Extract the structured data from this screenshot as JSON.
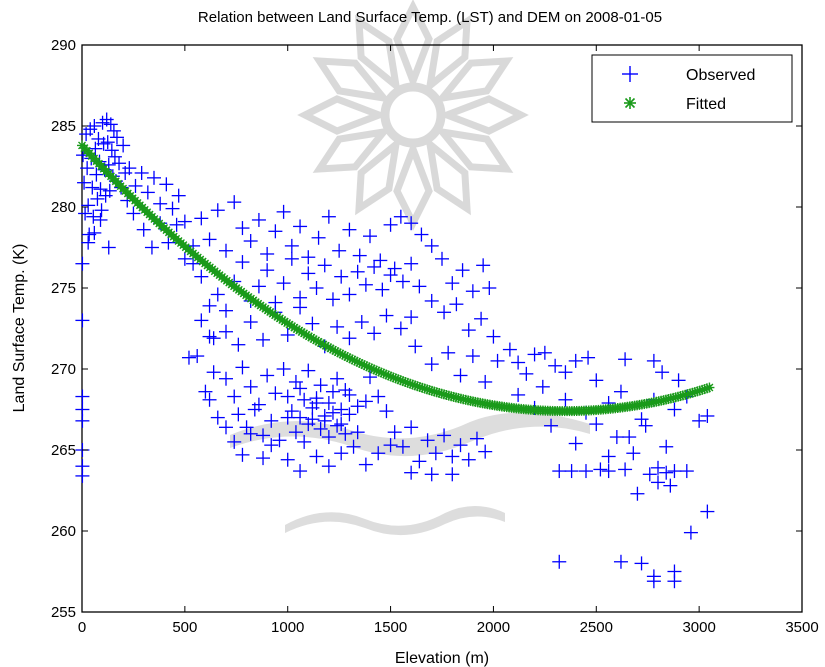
{
  "chart_data": {
    "type": "scatter",
    "title": "Relation between Land Surface Temp. (LST) and DEM on 2008-01-05",
    "xlabel": "Elevation (m)",
    "ylabel": "Land Surface Temp. (K)",
    "xlim": [
      0,
      3500
    ],
    "ylim": [
      255,
      290
    ],
    "xticks": [
      0,
      500,
      1000,
      1500,
      2000,
      2500,
      3000,
      3500
    ],
    "yticks": [
      255,
      260,
      265,
      270,
      275,
      280,
      285,
      290
    ],
    "xtick_labels": [
      "0",
      "500",
      "1000",
      "1500",
      "2000",
      "2500",
      "3000",
      "3500"
    ],
    "ytick_labels": [
      "255",
      "260",
      "265",
      "270",
      "275",
      "280",
      "285",
      "290"
    ],
    "grid": false,
    "legend_position": "top-right",
    "series": [
      {
        "name": "Observed",
        "marker": "+",
        "color": "#0000ff",
        "points": [
          [
            5,
            283.2
          ],
          [
            10,
            281.5
          ],
          [
            15,
            279.6
          ],
          [
            20,
            284.5
          ],
          [
            25,
            282.4
          ],
          [
            30,
            280.1
          ],
          [
            35,
            278.3
          ],
          [
            40,
            284.8
          ],
          [
            45,
            283.0
          ],
          [
            50,
            281.2
          ],
          [
            55,
            279.4
          ],
          [
            60,
            285.0
          ],
          [
            65,
            283.6
          ],
          [
            70,
            282.0
          ],
          [
            75,
            280.5
          ],
          [
            80,
            284.2
          ],
          [
            85,
            282.8
          ],
          [
            90,
            281.1
          ],
          [
            95,
            279.8
          ],
          [
            100,
            285.2
          ],
          [
            105,
            283.9
          ],
          [
            110,
            282.3
          ],
          [
            115,
            280.7
          ],
          [
            120,
            285.4
          ],
          [
            125,
            284.0
          ],
          [
            130,
            282.6
          ],
          [
            135,
            281.0
          ],
          [
            140,
            285.1
          ],
          [
            145,
            283.5
          ],
          [
            150,
            281.9
          ],
          [
            155,
            284.7
          ],
          [
            160,
            283.1
          ],
          [
            165,
            281.6
          ],
          [
            170,
            284.3
          ],
          [
            180,
            282.7
          ],
          [
            190,
            281.2
          ],
          [
            200,
            283.8
          ],
          [
            210,
            282.1
          ],
          [
            220,
            280.4
          ],
          [
            30,
            277.8
          ],
          [
            60,
            278.4
          ],
          [
            90,
            279.2
          ],
          [
            130,
            277.5
          ],
          [
            2,
            276.5
          ],
          [
            2,
            273.0
          ],
          [
            2,
            268.3
          ],
          [
            2,
            267.5
          ],
          [
            2,
            266.8
          ],
          [
            2,
            265.0
          ],
          [
            2,
            264.0
          ],
          [
            2,
            263.4
          ],
          [
            230,
            282.4
          ],
          [
            260,
            281.3
          ],
          [
            290,
            282.1
          ],
          [
            320,
            280.9
          ],
          [
            350,
            281.8
          ],
          [
            380,
            280.2
          ],
          [
            410,
            281.4
          ],
          [
            440,
            279.9
          ],
          [
            470,
            280.7
          ],
          [
            500,
            279.1
          ],
          [
            250,
            279.6
          ],
          [
            300,
            278.6
          ],
          [
            340,
            277.5
          ],
          [
            380,
            279.0
          ],
          [
            420,
            277.8
          ],
          [
            460,
            278.9
          ],
          [
            500,
            276.8
          ],
          [
            540,
            277.6
          ],
          [
            580,
            279.3
          ],
          [
            620,
            278.0
          ],
          [
            660,
            279.8
          ],
          [
            700,
            277.3
          ],
          [
            740,
            280.3
          ],
          [
            780,
            278.7
          ],
          [
            820,
            277.9
          ],
          [
            860,
            279.2
          ],
          [
            900,
            277.1
          ],
          [
            940,
            278.5
          ],
          [
            980,
            279.7
          ],
          [
            1020,
            277.6
          ],
          [
            1060,
            278.8
          ],
          [
            1100,
            276.9
          ],
          [
            1150,
            278.1
          ],
          [
            1200,
            279.4
          ],
          [
            1250,
            277.3
          ],
          [
            1300,
            278.6
          ],
          [
            1350,
            277.0
          ],
          [
            1400,
            278.2
          ],
          [
            1450,
            276.7
          ],
          [
            1500,
            278.9
          ],
          [
            1550,
            279.4
          ],
          [
            1600,
            279.0
          ],
          [
            1650,
            278.3
          ],
          [
            1700,
            277.6
          ],
          [
            1520,
            276.2
          ],
          [
            1560,
            275.4
          ],
          [
            1600,
            276.5
          ],
          [
            1640,
            275.1
          ],
          [
            1500,
            275.8
          ],
          [
            1460,
            274.9
          ],
          [
            1420,
            276.3
          ],
          [
            1380,
            275.2
          ],
          [
            1340,
            276.0
          ],
          [
            1300,
            274.6
          ],
          [
            1260,
            275.7
          ],
          [
            1220,
            274.3
          ],
          [
            1180,
            276.4
          ],
          [
            1140,
            275.0
          ],
          [
            1100,
            275.9
          ],
          [
            1060,
            274.4
          ],
          [
            1020,
            276.8
          ],
          [
            980,
            275.3
          ],
          [
            940,
            274.1
          ],
          [
            900,
            276.1
          ],
          [
            860,
            275.1
          ],
          [
            820,
            274.2
          ],
          [
            780,
            276.6
          ],
          [
            740,
            275.4
          ],
          [
            700,
            273.6
          ],
          [
            660,
            274.6
          ],
          [
            620,
            273.9
          ],
          [
            580,
            275.7
          ],
          [
            540,
            276.5
          ],
          [
            1750,
            276.8
          ],
          [
            1800,
            275.3
          ],
          [
            1850,
            276.1
          ],
          [
            1900,
            274.8
          ],
          [
            1950,
            276.4
          ],
          [
            1980,
            275.0
          ],
          [
            1700,
            274.2
          ],
          [
            1760,
            273.5
          ],
          [
            1820,
            274.0
          ],
          [
            1880,
            272.4
          ],
          [
            1940,
            273.1
          ],
          [
            2000,
            272.0
          ],
          [
            1600,
            273.2
          ],
          [
            1550,
            272.5
          ],
          [
            1480,
            273.3
          ],
          [
            1420,
            272.2
          ],
          [
            1360,
            272.9
          ],
          [
            1300,
            271.9
          ],
          [
            1240,
            272.6
          ],
          [
            1180,
            271.4
          ],
          [
            1120,
            272.8
          ],
          [
            1060,
            273.8
          ],
          [
            1000,
            272.1
          ],
          [
            940,
            273.5
          ],
          [
            880,
            271.8
          ],
          [
            820,
            272.9
          ],
          [
            760,
            271.5
          ],
          [
            700,
            272.3
          ],
          [
            640,
            271.9
          ],
          [
            580,
            273.0
          ],
          [
            520,
            270.7
          ],
          [
            560,
            270.8
          ],
          [
            620,
            272.0
          ],
          [
            1620,
            271.4
          ],
          [
            1700,
            270.3
          ],
          [
            1780,
            271.0
          ],
          [
            1840,
            269.6
          ],
          [
            1900,
            270.8
          ],
          [
            1960,
            269.2
          ],
          [
            2020,
            270.5
          ],
          [
            2080,
            271.2
          ],
          [
            2120,
            270.4
          ],
          [
            2160,
            269.7
          ],
          [
            2200,
            270.9
          ],
          [
            2250,
            271.0
          ],
          [
            2300,
            270.2
          ],
          [
            2350,
            269.8
          ],
          [
            2400,
            270.5
          ],
          [
            2460,
            270.7
          ],
          [
            2500,
            269.3
          ],
          [
            2640,
            270.6
          ],
          [
            2780,
            270.5
          ],
          [
            2820,
            269.8
          ],
          [
            2900,
            269.3
          ],
          [
            2120,
            268.4
          ],
          [
            2200,
            267.6
          ],
          [
            2240,
            268.9
          ],
          [
            2280,
            266.5
          ],
          [
            2350,
            268.1
          ],
          [
            2400,
            265.4
          ],
          [
            2450,
            267.3
          ],
          [
            2500,
            266.6
          ],
          [
            2560,
            267.9
          ],
          [
            2620,
            268.6
          ],
          [
            2660,
            265.8
          ],
          [
            2720,
            266.9
          ],
          [
            2780,
            268.1
          ],
          [
            2840,
            265.2
          ],
          [
            2880,
            267.5
          ],
          [
            2940,
            268.3
          ],
          [
            3000,
            266.8
          ],
          [
            2320,
            263.7
          ],
          [
            2380,
            263.7
          ],
          [
            2450,
            263.7
          ],
          [
            2520,
            263.8
          ],
          [
            2560,
            263.7
          ],
          [
            2640,
            263.8
          ],
          [
            2700,
            262.3
          ],
          [
            2760,
            263.5
          ],
          [
            2800,
            263.9
          ],
          [
            2840,
            263.6
          ],
          [
            2880,
            263.7
          ],
          [
            2940,
            263.7
          ],
          [
            2800,
            263.0
          ],
          [
            2860,
            262.8
          ],
          [
            2320,
            258.1
          ],
          [
            2620,
            258.1
          ],
          [
            2720,
            258.0
          ],
          [
            2780,
            257.2
          ],
          [
            2880,
            257.5
          ],
          [
            2880,
            256.9
          ],
          [
            2780,
            256.9
          ],
          [
            2960,
            259.9
          ],
          [
            3040,
            261.2
          ],
          [
            3040,
            267.1
          ],
          [
            2560,
            264.6
          ],
          [
            2600,
            265.8
          ],
          [
            2680,
            264.8
          ],
          [
            2740,
            266.5
          ],
          [
            700,
            269.4
          ],
          [
            740,
            268.3
          ],
          [
            780,
            270.1
          ],
          [
            820,
            268.9
          ],
          [
            860,
            267.8
          ],
          [
            900,
            269.6
          ],
          [
            940,
            268.5
          ],
          [
            980,
            270.0
          ],
          [
            1020,
            267.4
          ],
          [
            1060,
            268.8
          ],
          [
            1100,
            269.9
          ],
          [
            1140,
            268.2
          ],
          [
            1180,
            267.1
          ],
          [
            1220,
            268.6
          ],
          [
            1260,
            267.5
          ],
          [
            1300,
            268.4
          ],
          [
            1340,
            267.7
          ],
          [
            1380,
            268.0
          ],
          [
            760,
            267.2
          ],
          [
            800,
            266.4
          ],
          [
            840,
            267.5
          ],
          [
            880,
            265.9
          ],
          [
            920,
            266.8
          ],
          [
            960,
            265.6
          ],
          [
            1000,
            267.0
          ],
          [
            1040,
            266.1
          ],
          [
            1080,
            265.5
          ],
          [
            1120,
            266.9
          ],
          [
            1160,
            266.3
          ],
          [
            1200,
            265.8
          ],
          [
            1240,
            266.5
          ],
          [
            1280,
            266.0
          ],
          [
            1320,
            265.2
          ],
          [
            1000,
            268.3
          ],
          [
            1040,
            269.2
          ],
          [
            1080,
            268.1
          ],
          [
            1120,
            267.6
          ],
          [
            1160,
            269.0
          ],
          [
            1200,
            267.9
          ],
          [
            1240,
            269.4
          ],
          [
            1280,
            268.7
          ],
          [
            1060,
            267.0
          ],
          [
            1100,
            266.6
          ],
          [
            1140,
            267.9
          ],
          [
            1180,
            266.8
          ],
          [
            1220,
            267.3
          ],
          [
            1260,
            266.6
          ],
          [
            1300,
            267.2
          ],
          [
            1340,
            266.1
          ],
          [
            1000,
            264.4
          ],
          [
            1060,
            263.7
          ],
          [
            1140,
            264.6
          ],
          [
            1200,
            264.0
          ],
          [
            1260,
            264.8
          ],
          [
            620,
            268.1
          ],
          [
            660,
            267.0
          ],
          [
            700,
            266.4
          ],
          [
            740,
            265.5
          ],
          [
            780,
            264.7
          ],
          [
            820,
            266.0
          ],
          [
            880,
            264.5
          ],
          [
            920,
            265.3
          ],
          [
            640,
            269.8
          ],
          [
            600,
            268.6
          ],
          [
            1400,
            269.5
          ],
          [
            1440,
            268.3
          ],
          [
            1480,
            267.4
          ],
          [
            1520,
            266.1
          ],
          [
            1560,
            265.2
          ],
          [
            1600,
            266.4
          ],
          [
            1640,
            264.3
          ],
          [
            1680,
            265.6
          ],
          [
            1720,
            264.8
          ],
          [
            1760,
            265.9
          ],
          [
            1800,
            264.6
          ],
          [
            1840,
            265.3
          ],
          [
            1880,
            264.4
          ],
          [
            1920,
            265.7
          ],
          [
            1960,
            264.9
          ],
          [
            1500,
            265.3
          ],
          [
            1440,
            264.8
          ],
          [
            1380,
            264.1
          ],
          [
            1600,
            263.6
          ],
          [
            1700,
            263.5
          ],
          [
            1800,
            263.5
          ]
        ]
      },
      {
        "name": "Fitted",
        "marker": "*",
        "color": "#1a9a1a",
        "curve": {
          "kind": "quadratic",
          "x_min": 0,
          "x_max": 3050,
          "y_at_0": 283.8,
          "vertex_x": 2350,
          "vertex_y": 267.4
        }
      }
    ]
  }
}
